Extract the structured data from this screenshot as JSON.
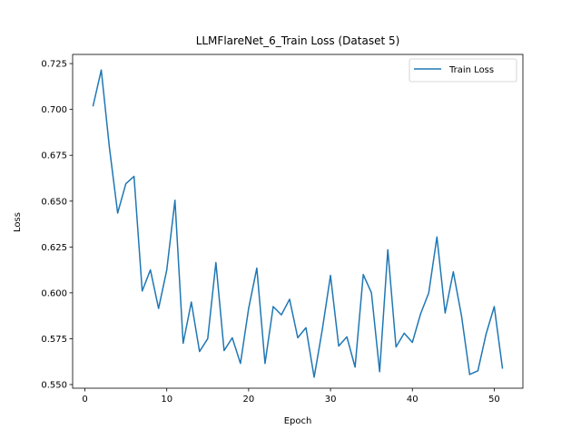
{
  "chart_data": {
    "type": "line",
    "title": "LLMFlareNet_6_Train Loss  (Dataset 5)",
    "xlabel": "Epoch",
    "ylabel": "Loss",
    "xlim": [
      -1.5,
      53.5
    ],
    "ylim": [
      0.548,
      0.73
    ],
    "xticks": [
      0,
      10,
      20,
      30,
      40,
      50
    ],
    "yticks": [
      0.55,
      0.575,
      0.6,
      0.625,
      0.65,
      0.675,
      0.7,
      0.725
    ],
    "legend_position": "top-right",
    "grid": false,
    "series": [
      {
        "name": "Train Loss",
        "color": "#1f77b4",
        "x": [
          1,
          2,
          3,
          4,
          5,
          6,
          7,
          8,
          9,
          10,
          11,
          12,
          13,
          14,
          15,
          16,
          17,
          18,
          19,
          20,
          21,
          22,
          23,
          24,
          25,
          26,
          27,
          28,
          29,
          30,
          31,
          32,
          33,
          34,
          35,
          36,
          37,
          38,
          39,
          40,
          41,
          42,
          43,
          44,
          45,
          46,
          47,
          48,
          49,
          50,
          51
        ],
        "y": [
          0.702,
          0.7215,
          0.679,
          0.6435,
          0.6595,
          0.6635,
          0.601,
          0.6125,
          0.5915,
          0.6125,
          0.6505,
          0.5725,
          0.595,
          0.568,
          0.575,
          0.6165,
          0.5685,
          0.5755,
          0.5615,
          0.5915,
          0.6135,
          0.5615,
          0.5925,
          0.588,
          0.5965,
          0.5755,
          0.581,
          0.554,
          0.58,
          0.6095,
          0.571,
          0.576,
          0.5595,
          0.61,
          0.6,
          0.557,
          0.6235,
          0.5705,
          0.578,
          0.573,
          0.5885,
          0.6,
          0.6305,
          0.589,
          0.6115,
          0.5875,
          0.5555,
          0.5575,
          0.5775,
          0.5925,
          0.559
        ]
      }
    ]
  }
}
